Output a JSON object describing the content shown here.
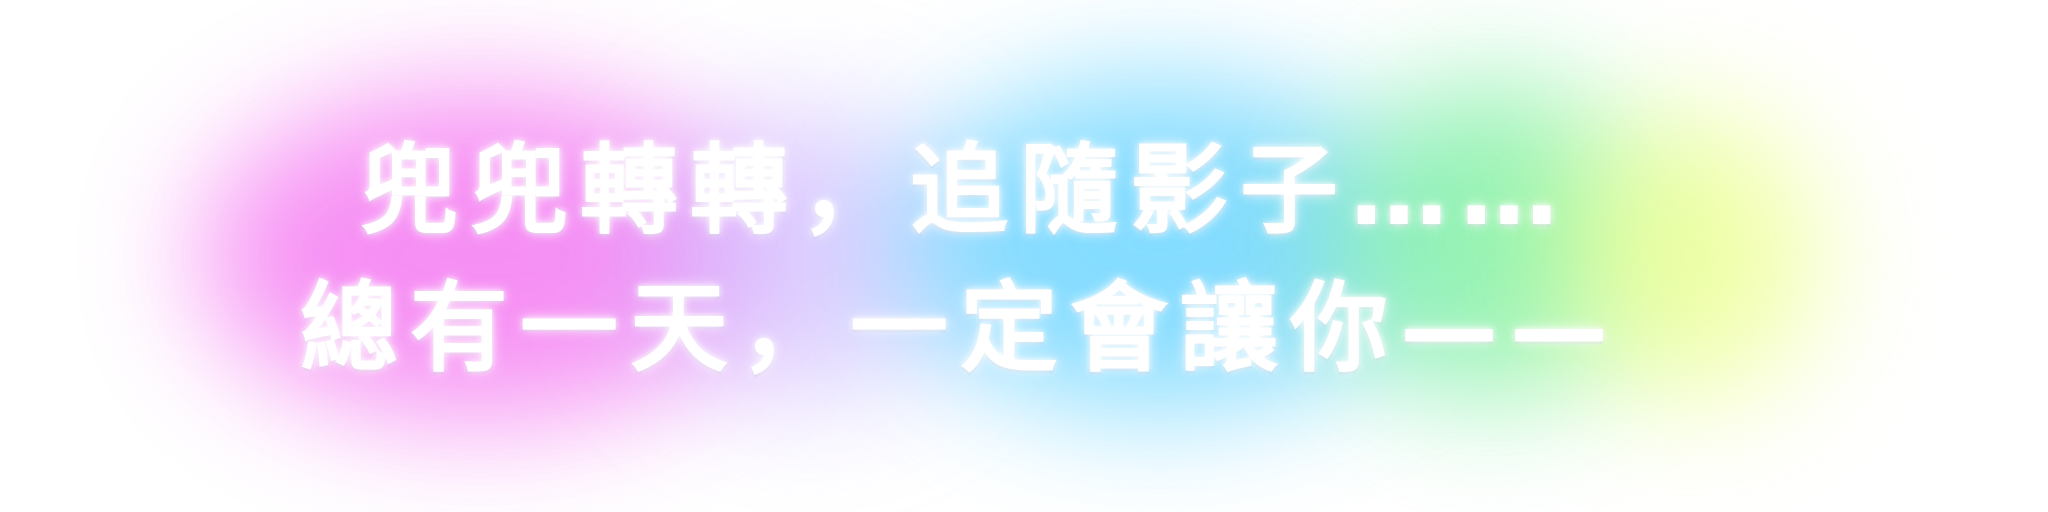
{
  "lyrics": {
    "line1": "兜兜轉轉，追隨影子……",
    "line2": "總有一天，一定會讓你——"
  },
  "colors": {
    "text": "#ffffff",
    "glow": [
      "#f57cf2",
      "#c9b6ff",
      "#6fd6ff",
      "#7df0a2",
      "#ecff8a"
    ],
    "background": "#ffffff"
  }
}
